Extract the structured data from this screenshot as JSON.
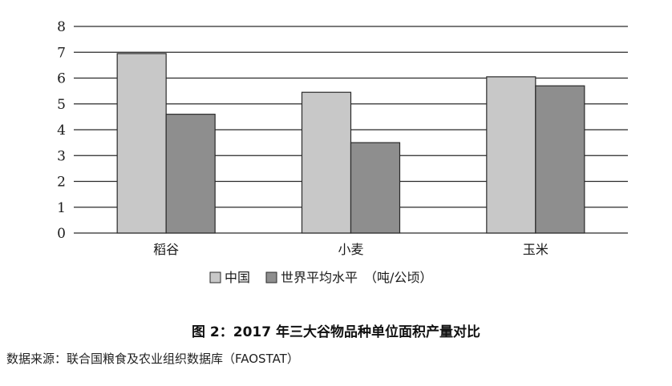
{
  "chart_data": {
    "type": "bar",
    "categories": [
      "稻谷",
      "小麦",
      "玉米"
    ],
    "series": [
      {
        "name": "中国",
        "values": [
          6.95,
          5.45,
          6.05
        ],
        "color": "#c8c8c8"
      },
      {
        "name": "世界平均水平",
        "values": [
          4.6,
          3.5,
          5.7
        ],
        "color": "#8e8e8e"
      }
    ],
    "unit_note": "（吨/公顷）",
    "ylim": [
      0,
      8
    ],
    "yticks": [
      "0",
      "1",
      "2",
      "3",
      "4",
      "5",
      "6",
      "7",
      "8"
    ],
    "grid": true,
    "legend_position": "bottom"
  },
  "caption": "图 2：2017 年三大谷物品种单位面积产量对比",
  "source": "数据来源：联合国粮食及农业组织数据库（FAOSTAT）"
}
